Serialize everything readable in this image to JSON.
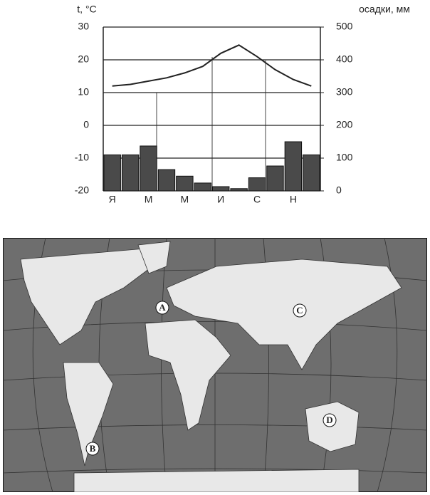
{
  "chart_data": {
    "type": "bar",
    "y_label": "t, °C",
    "y2_label": "осадки, мм",
    "categories": [
      "Я",
      null,
      "М",
      null,
      "М",
      null,
      "И",
      null,
      "С",
      null,
      "Н",
      null
    ],
    "ylim": [
      -20,
      30
    ],
    "yticks": [
      -20,
      -10,
      0,
      10,
      20,
      30
    ],
    "y2lim": [
      0,
      500
    ],
    "y2ticks": [
      0,
      100,
      200,
      300,
      400,
      500
    ],
    "grid": true,
    "series": [
      {
        "type": "bar",
        "axis": "y2",
        "color": "#4a4a4a",
        "values": [
          110,
          110,
          137,
          65,
          45,
          24,
          13,
          7,
          40,
          76,
          150,
          110
        ]
      },
      {
        "type": "line",
        "color": "#222222",
        "values": [
          12,
          12.5,
          13.5,
          14.5,
          16,
          18,
          22,
          24.5,
          21,
          17,
          14,
          12
        ]
      }
    ]
  },
  "map": {
    "points": [
      "A",
      "B",
      "C",
      "D"
    ]
  }
}
